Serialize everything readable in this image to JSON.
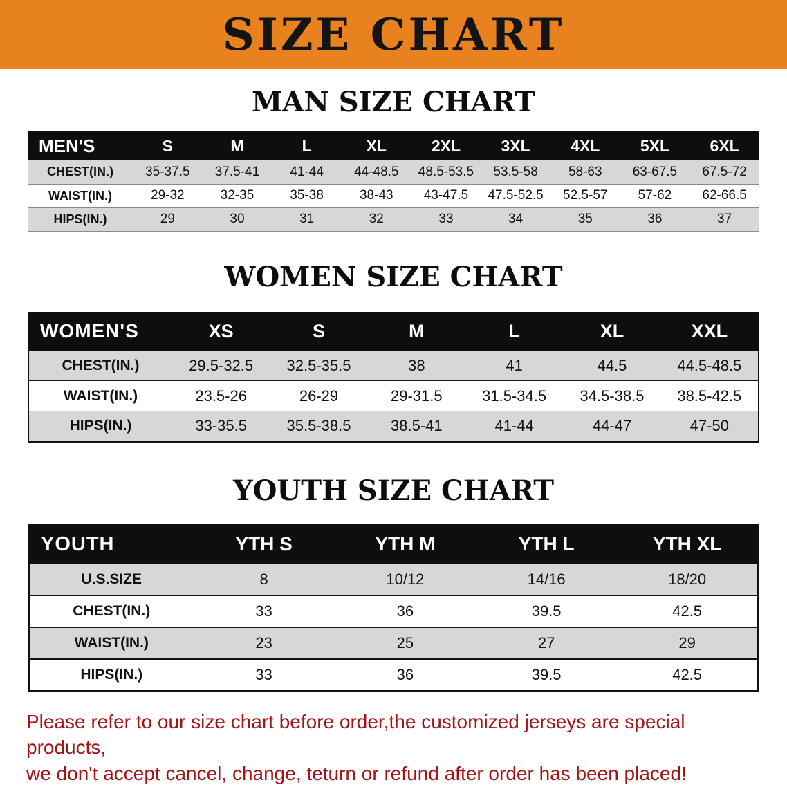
{
  "banner": {
    "title": "SIZE CHART",
    "bg_color": "#E8821E"
  },
  "sections": [
    {
      "id": "men",
      "heading": "MAN SIZE CHART",
      "table": {
        "header": [
          "MEN'S",
          "S",
          "M",
          "L",
          "XL",
          "2XL",
          "3XL",
          "4XL",
          "5XL",
          "6XL"
        ],
        "rows": [
          [
            "CHEST(IN.)",
            "35-37.5",
            "37.5-41",
            "41-44",
            "44-48.5",
            "48.5-53.5",
            "53.5-58",
            "58-63",
            "63-67.5",
            "67.5-72"
          ],
          [
            "WAIST(IN.)",
            "29-32",
            "32-35",
            "35-38",
            "38-43",
            "43-47.5",
            "47.5-52.5",
            "52.5-57",
            "57-62",
            "62-66.5"
          ],
          [
            "HIPS(IN.)",
            "29",
            "30",
            "31",
            "32",
            "33",
            "34",
            "35",
            "36",
            "37"
          ]
        ]
      }
    },
    {
      "id": "women",
      "heading": "WOMEN SIZE CHART",
      "table": {
        "header": [
          "WOMEN'S",
          "XS",
          "S",
          "M",
          "L",
          "XL",
          "XXL"
        ],
        "rows": [
          [
            "CHEST(IN.)",
            "29.5-32.5",
            "32.5-35.5",
            "38",
            "41",
            "44.5",
            "44.5-48.5"
          ],
          [
            "WAIST(IN.)",
            "23.5-26",
            "26-29",
            "29-31.5",
            "31.5-34.5",
            "34.5-38.5",
            "38.5-42.5"
          ],
          [
            "HIPS(IN.)",
            "33-35.5",
            "35.5-38.5",
            "38.5-41",
            "41-44",
            "44-47",
            "47-50"
          ]
        ]
      }
    },
    {
      "id": "youth",
      "heading": "YOUTH SIZE CHART",
      "table": {
        "header": [
          "YOUTH",
          "YTH S",
          "YTH M",
          "YTH L",
          "YTH XL"
        ],
        "rows": [
          [
            "U.S.SIZE",
            "8",
            "10/12",
            "14/16",
            "18/20"
          ],
          [
            "CHEST(IN.)",
            "33",
            "36",
            "39.5",
            "42.5"
          ],
          [
            "WAIST(IN.)",
            "23",
            "25",
            "27",
            "29"
          ],
          [
            "HIPS(IN.)",
            "33",
            "36",
            "39.5",
            "42.5"
          ]
        ]
      }
    }
  ],
  "disclaimer": {
    "line1": "Please refer to our size chart before order,the customized jerseys are special products,",
    "line2": "we don't accept cancel, change, teturn or refund after order has been placed!",
    "color": "#A51414"
  }
}
